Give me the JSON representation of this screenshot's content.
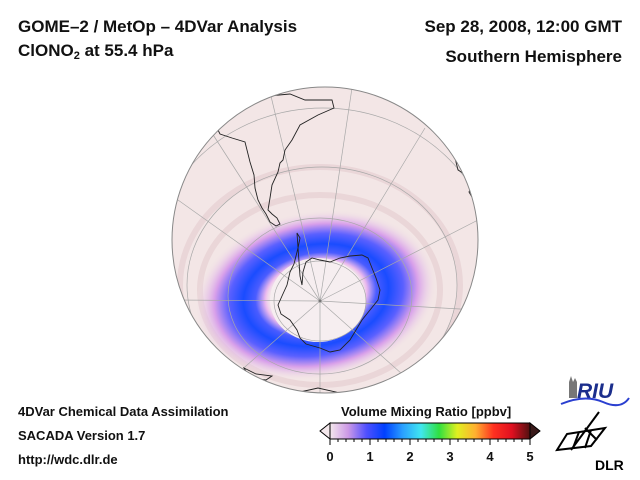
{
  "header": {
    "title_line1": "GOME–2 / MetOp – 4DVar Analysis",
    "species_main": "ClONO",
    "species_subscript": "2",
    "species_suffix": " at 55.4 hPa",
    "datetime": "Sep 28, 2008, 12:00 GMT",
    "region": "Southern Hemisphere"
  },
  "credits": {
    "line1": "4DVar Chemical Data Assimilation",
    "line2": "SACADA Version 1.7",
    "line3": "http://wdc.dlr.de"
  },
  "colorbar": {
    "title": "Volume Mixing Ratio [ppbv]",
    "min": 0,
    "max": 5,
    "ticks": [
      "0",
      "1",
      "2",
      "3",
      "4",
      "5"
    ],
    "extend": "both",
    "colors": [
      "#f4e8ec",
      "#cc99e6",
      "#5050ff",
      "#0040ff",
      "#2aa0ff",
      "#40e6f0",
      "#30e040",
      "#e0f020",
      "#ffb030",
      "#ff3020",
      "#e01020",
      "#501010"
    ]
  },
  "map": {
    "projection": "orthographic",
    "center": "South Pole",
    "background_color": "#f3e6e6",
    "features": [
      "South America",
      "Antarctica",
      "Africa (south tip)",
      "Madagascar",
      "Australia/New Zealand edge"
    ],
    "vortex_ring": {
      "description": "ClONO2 collar around polar vortex edge",
      "peak_value_ppbv": 1.2,
      "inner_value_ppbv": 0.1,
      "outer_value_ppbv": 0.2
    }
  },
  "logos": {
    "riu": "RIU",
    "dlr": "DLR"
  }
}
